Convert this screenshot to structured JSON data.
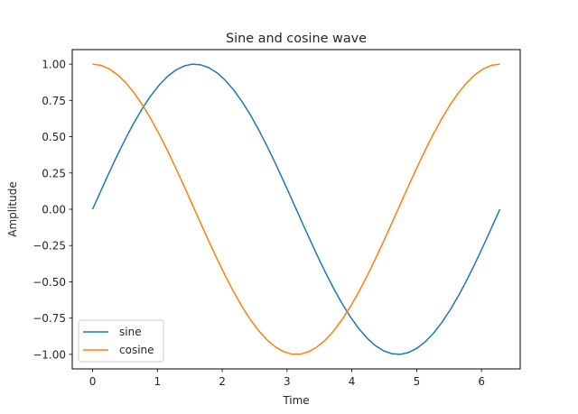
{
  "chart_data": {
    "type": "line",
    "title": "Sine and cosine wave",
    "xlabel": "Time",
    "ylabel": "Amplitude",
    "xlim": [
      -0.314,
      6.597
    ],
    "ylim": [
      -1.1,
      1.1
    ],
    "xticks": [
      0,
      1,
      2,
      3,
      4,
      5,
      6
    ],
    "xtick_labels": [
      "0",
      "1",
      "2",
      "3",
      "4",
      "5",
      "6"
    ],
    "yticks": [
      1.0,
      0.75,
      0.5,
      0.25,
      0.0,
      -0.25,
      -0.5,
      -0.75,
      -1.0
    ],
    "ytick_labels": [
      "1.00",
      "0.75",
      "0.50",
      "0.25",
      "0.00",
      "−0.25",
      "−0.50",
      "−0.75",
      "−1.00"
    ],
    "grid": false,
    "legend_position": "lower left",
    "x_range": [
      0,
      6.283
    ],
    "n_points": 50,
    "series": [
      {
        "name": "sine",
        "color": "#1f77b4",
        "function": "sin(t)",
        "sample_points": [
          [
            0,
            0.0
          ],
          [
            0.785,
            0.707
          ],
          [
            1.571,
            1.0
          ],
          [
            2.356,
            0.707
          ],
          [
            3.142,
            0.0
          ],
          [
            3.927,
            -0.707
          ],
          [
            4.712,
            -1.0
          ],
          [
            5.498,
            -0.707
          ],
          [
            6.283,
            0.0
          ]
        ]
      },
      {
        "name": "cosine",
        "color": "#ff7f0e",
        "function": "cos(t)",
        "sample_points": [
          [
            0,
            1.0
          ],
          [
            0.785,
            0.707
          ],
          [
            1.571,
            0.0
          ],
          [
            2.356,
            -0.707
          ],
          [
            3.142,
            -1.0
          ],
          [
            3.927,
            -0.707
          ],
          [
            4.712,
            0.0
          ],
          [
            5.498,
            0.707
          ],
          [
            6.283,
            1.0
          ]
        ]
      }
    ]
  }
}
